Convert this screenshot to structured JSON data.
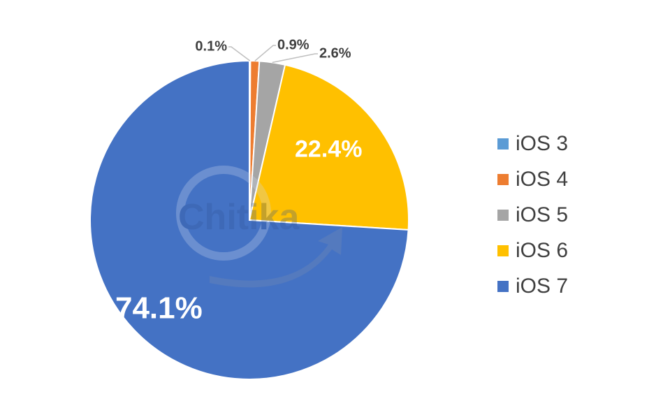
{
  "chart_data": {
    "type": "pie",
    "title": "",
    "start_angle_deg": 0,
    "direction": "clockwise",
    "slices": [
      {
        "label": "iOS 3",
        "value": 0.1,
        "display": "0.1%",
        "color": "#5B9BD5"
      },
      {
        "label": "iOS 4",
        "value": 0.9,
        "display": "0.9%",
        "color": "#ED7D31"
      },
      {
        "label": "iOS 5",
        "value": 2.6,
        "display": "2.6%",
        "color": "#A5A5A5"
      },
      {
        "label": "iOS 6",
        "value": 22.4,
        "display": "22.4%",
        "color": "#FFC000"
      },
      {
        "label": "iOS 7",
        "value": 74.1,
        "display": "74.1%",
        "color": "#4472C4"
      }
    ],
    "legend_position": "right"
  },
  "watermark": {
    "text": "Chitika"
  }
}
